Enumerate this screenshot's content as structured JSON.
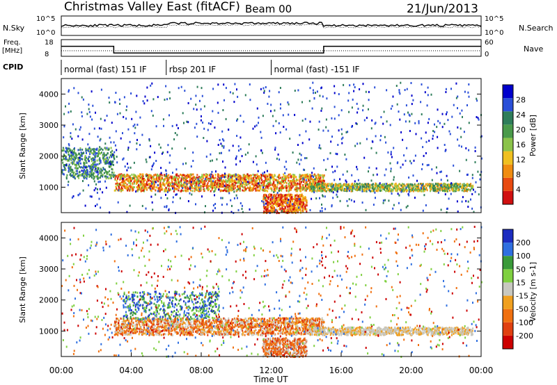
{
  "header": {
    "title": "Christmas Valley East (fitACF)",
    "beam": "Beam 00",
    "date": "21/Jun/2013"
  },
  "top_panels": {
    "nsky_label": "N.Sky",
    "nsearch_label": "N.Search",
    "freq_label_1": "Freq.",
    "freq_label_2": "[MHz]",
    "nave_label": "Nave",
    "cpid_label": "CPID",
    "noise_ticks": [
      "10^5",
      "10^0"
    ],
    "freq_ticks": [
      "18",
      "8"
    ],
    "nave_ticks": [
      "60",
      "0"
    ],
    "cpid_segments": [
      {
        "label": "normal (fast) 151 IF",
        "start_h": 0,
        "end_h": 6
      },
      {
        "label": "rbsp 201 IF",
        "start_h": 6,
        "end_h": 12
      },
      {
        "label": "normal (fast) -151 IF",
        "start_h": 12,
        "end_h": 24
      }
    ],
    "freq_steps": [
      {
        "start_h": 0,
        "end_h": 3,
        "mhz": 14
      },
      {
        "start_h": 3,
        "end_h": 15,
        "mhz": 10
      },
      {
        "start_h": 15,
        "end_h": 24,
        "mhz": 14
      }
    ]
  },
  "panels": {
    "ylabel": "Slant Range [km]",
    "xlabel": "Time UT",
    "x_ticks": [
      "00:00",
      "04:00",
      "08:00",
      "12:00",
      "16:00",
      "20:00",
      "00:00"
    ],
    "y_ticks": [
      "1000",
      "2000",
      "3000",
      "4000"
    ]
  },
  "power_scale": {
    "label": "Power [dB]",
    "ticks": [
      "4",
      "8",
      "12",
      "16",
      "20",
      "24",
      "28"
    ],
    "colors": [
      "#0000cc",
      "#2a4fd8",
      "#2e7d5a",
      "#4a9a4a",
      "#8bc34a",
      "#f0c020",
      "#f08c10",
      "#e84a10",
      "#d01010"
    ]
  },
  "velocity_scale": {
    "label": "Velocity [m s-1]",
    "ticks": [
      "200",
      "100",
      "50",
      "15",
      "-15",
      "-50",
      "-100",
      "-200"
    ],
    "colors": [
      "#1c2cc0",
      "#2f6fe0",
      "#3a9a3a",
      "#7fd040",
      "#c8c8c0",
      "#f0a020",
      "#f07010",
      "#e04010",
      "#cc0000"
    ]
  },
  "chart_data": {
    "type": "heatmap",
    "title": "Christmas Valley East (fitACF)",
    "xlabel": "Time UT",
    "ylabel": "Slant Range [km]",
    "x_range_h": [
      0,
      24
    ],
    "y_range_km": [
      180,
      4500
    ],
    "grid": false,
    "features": [
      {
        "name": "low echo band",
        "t_start_h": 3,
        "t_end_h": 15,
        "range_km": [
          900,
          1450
        ],
        "power_db": 24,
        "velocity_ms": -60
      },
      {
        "name": "sloping echoes",
        "t_start_h": 0,
        "t_end_h": 3,
        "range_km": [
          1300,
          2300
        ],
        "power_db": 12,
        "velocity_ms": 100
      },
      {
        "name": "ground scatter arc",
        "t_start_h": 11.5,
        "t_end_h": 14,
        "range_km": [
          200,
          800
        ],
        "power_db": 28,
        "velocity_ms": 0
      },
      {
        "name": "afternoon band",
        "t_start_h": 14,
        "t_end_h": 23.5,
        "range_km": [
          900,
          1150
        ],
        "power_db": 20,
        "velocity_ms": 0
      }
    ]
  }
}
